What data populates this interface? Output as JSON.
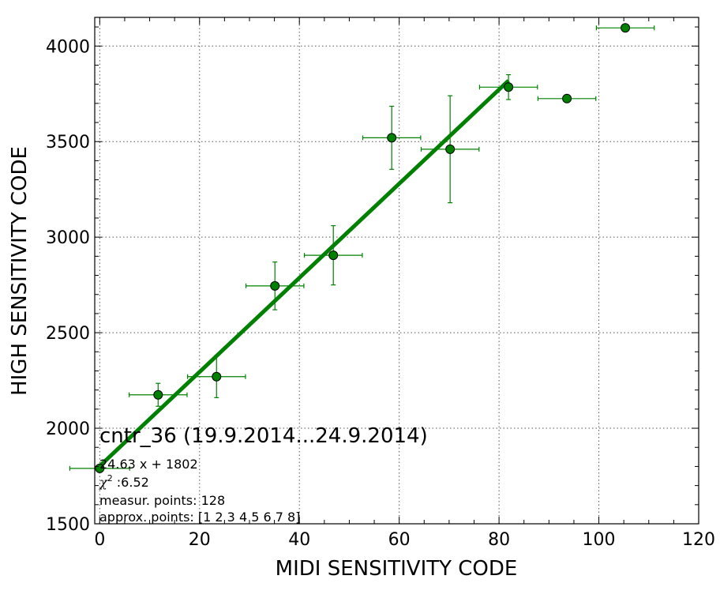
{
  "chart_data": {
    "type": "scatter",
    "xlabel": "MIDI SENSITIVITY CODE",
    "ylabel": "HIGH SENSITIVITY CODE",
    "xlim": [
      -1,
      120
    ],
    "ylim": [
      1500,
      4150
    ],
    "xticks": [
      0,
      20,
      40,
      60,
      80,
      100,
      120
    ],
    "yticks": [
      1500,
      2000,
      2500,
      3000,
      3500,
      4000
    ],
    "grid": true,
    "series": [
      {
        "color": "#008000",
        "marker": "circle",
        "points": [
          {
            "x": 0,
            "y": 1790,
            "xerr": 6,
            "yerr": 0
          },
          {
            "x": 11.7,
            "y": 2175,
            "xerr": 5.8,
            "yerr": 60
          },
          {
            "x": 23.4,
            "y": 2270,
            "xerr": 5.8,
            "yerr": 110
          },
          {
            "x": 35.1,
            "y": 2745,
            "xerr": 5.8,
            "yerr": 125
          },
          {
            "x": 46.8,
            "y": 2905,
            "xerr": 5.8,
            "yerr": 155
          },
          {
            "x": 58.5,
            "y": 3520,
            "xerr": 5.8,
            "yerr": 165
          },
          {
            "x": 70.2,
            "y": 3460,
            "xerr": 5.8,
            "yerr": 280
          },
          {
            "x": 81.9,
            "y": 3785,
            "xerr": 5.8,
            "yerr": 65
          },
          {
            "x": 93.6,
            "y": 3725,
            "xerr": 5.8,
            "yerr": 0
          },
          {
            "x": 105.3,
            "y": 4095,
            "xerr": 5.8,
            "yerr": 0
          }
        ]
      }
    ],
    "fit_line": {
      "slope": 24.63,
      "intercept": 1802,
      "x_range": [
        0,
        81.9
      ],
      "color": "#008000"
    },
    "annotations": {
      "title": "cntr_36 (19.9.2014...24.9.2014)",
      "equation": "24.63 x + 1802",
      "chi2_label": "χ",
      "chi2_exp": "2",
      "chi2_value": " :6.52",
      "measur_points": "measur. points: 128",
      "approx_points": "approx. points: [1 2 3 4 5 6 7 8]"
    }
  }
}
